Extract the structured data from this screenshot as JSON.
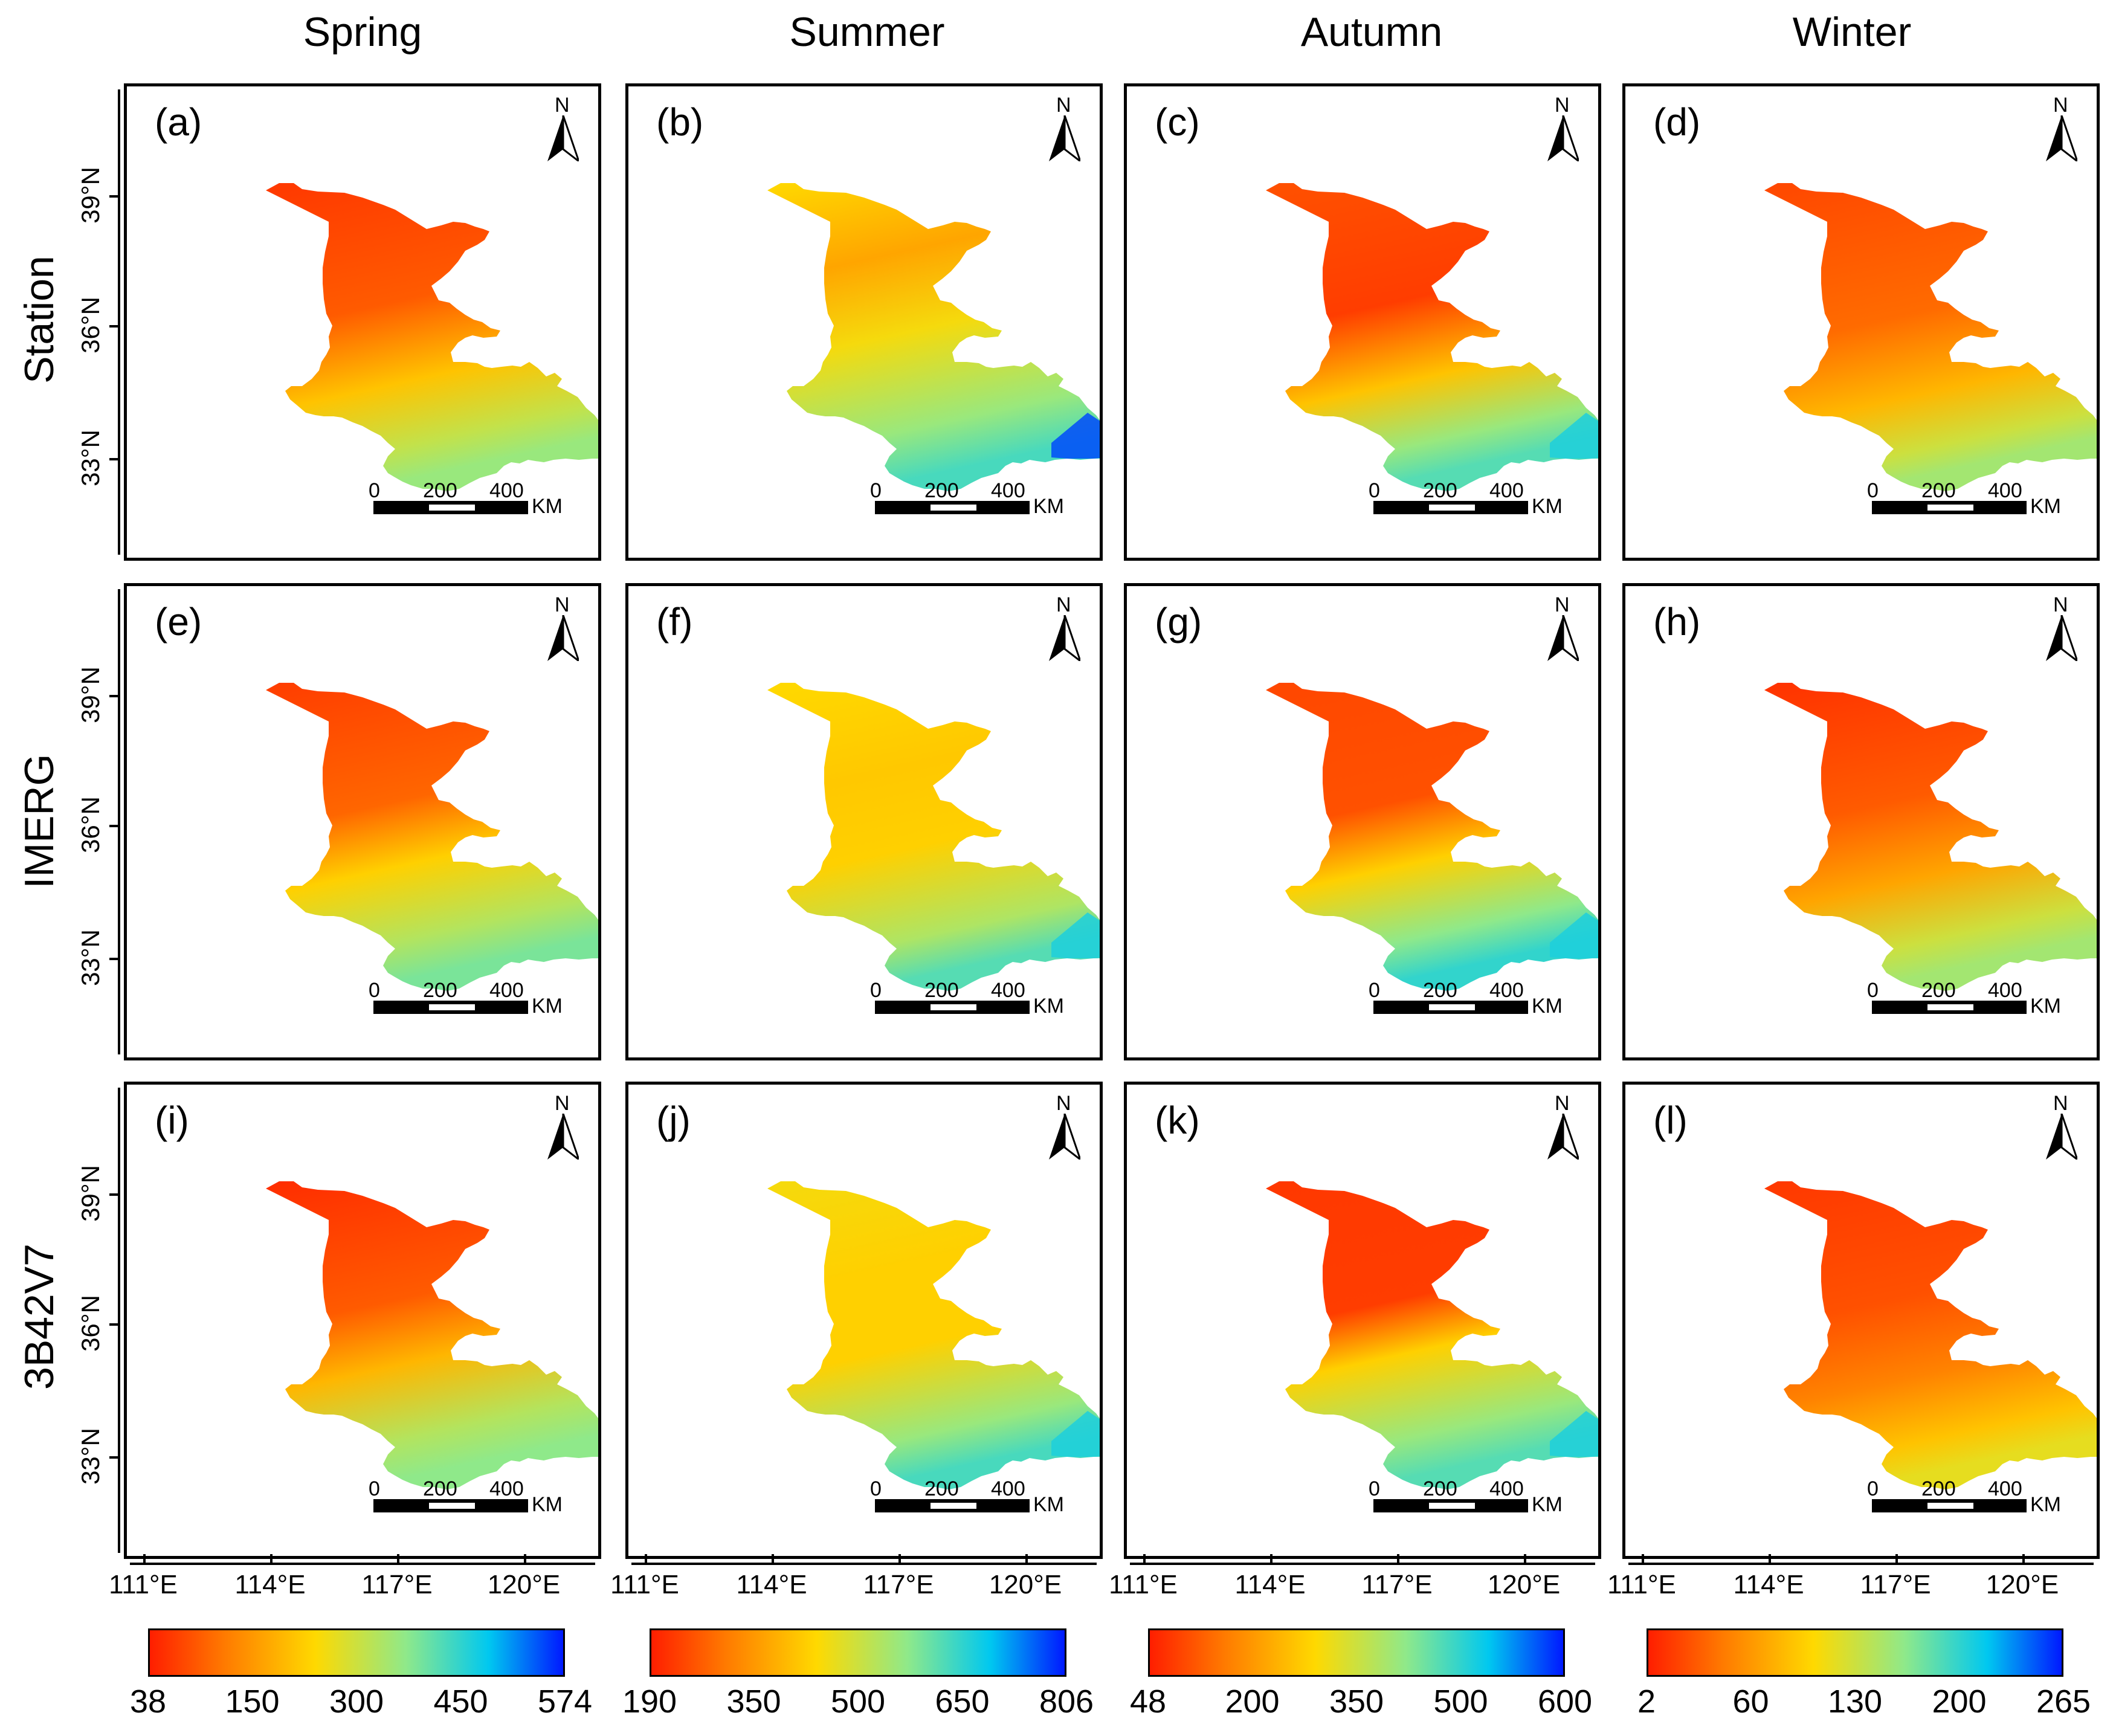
{
  "columns": [
    "Spring",
    "Summer",
    "Autumn",
    "Winter"
  ],
  "rows": [
    "Station",
    "IMERG",
    "3B42V7"
  ],
  "panels": [
    {
      "label": "(a)",
      "season": "Spring",
      "source": "Station"
    },
    {
      "label": "(b)",
      "season": "Summer",
      "source": "Station"
    },
    {
      "label": "(c)",
      "season": "Autumn",
      "source": "Station"
    },
    {
      "label": "(d)",
      "season": "Winter",
      "source": "Station"
    },
    {
      "label": "(e)",
      "season": "Spring",
      "source": "IMERG"
    },
    {
      "label": "(f)",
      "season": "Summer",
      "source": "IMERG"
    },
    {
      "label": "(g)",
      "season": "Autumn",
      "source": "IMERG"
    },
    {
      "label": "(h)",
      "season": "Winter",
      "source": "IMERG"
    },
    {
      "label": "(i)",
      "season": "Spring",
      "source": "3B42V7"
    },
    {
      "label": "(j)",
      "season": "Summer",
      "source": "3B42V7"
    },
    {
      "label": "(k)",
      "season": "Autumn",
      "source": "3B42V7"
    },
    {
      "label": "(l)",
      "season": "Winter",
      "source": "3B42V7"
    }
  ],
  "north_label": "N",
  "scale_bar": {
    "ticks": [
      "0",
      "200",
      "400"
    ],
    "unit": "KM"
  },
  "latitude_ticks": [
    "39°N",
    "36°N",
    "33°N"
  ],
  "longitude_ticks": [
    "111°E",
    "114°E",
    "117°E",
    "120°E"
  ],
  "colorbars": [
    {
      "season": "Spring",
      "ticks": [
        "38",
        "150",
        "300",
        "450",
        "574"
      ]
    },
    {
      "season": "Summer",
      "ticks": [
        "190",
        "350",
        "500",
        "650",
        "806"
      ]
    },
    {
      "season": "Autumn",
      "ticks": [
        "48",
        "200",
        "350",
        "500",
        "600"
      ]
    },
    {
      "season": "Winter",
      "ticks": [
        "2",
        "60",
        "130",
        "200",
        "265"
      ]
    }
  ],
  "colors": {
    "low": "#ff1e00",
    "orange": "#ff7a00",
    "yellow": "#ffd900",
    "green": "#8fe98a",
    "cyan": "#00c8f0",
    "blue": "#0019ff"
  }
}
